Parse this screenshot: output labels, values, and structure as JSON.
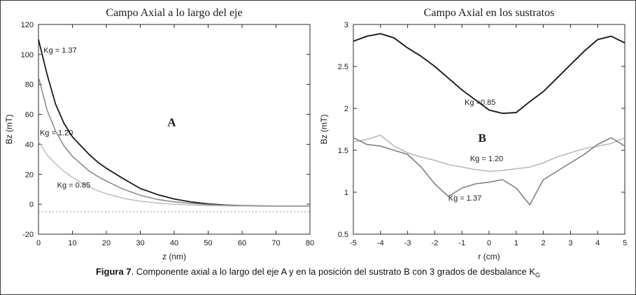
{
  "figure": {
    "caption": {
      "label": "Figura 7",
      "text": ". Componente axial a lo largo del eje A y en la posición del sustrato B con 3 grados de desbalance K",
      "subscript": "G"
    }
  },
  "chart_data": [
    {
      "type": "line",
      "title": "Campo Axial a lo largo del eje",
      "xlabel": "z (nm)",
      "ylabel": "Bz (mT)",
      "xlim": [
        0,
        80
      ],
      "ylim": [
        -20,
        120
      ],
      "xticks": [
        0,
        10,
        20,
        30,
        40,
        50,
        60,
        70,
        80
      ],
      "yticks": [
        -20,
        0,
        20,
        40,
        60,
        80,
        100,
        120
      ],
      "grid": false,
      "legend": "inline-labels",
      "panel_label": "A",
      "series": [
        {
          "name": "Kg = 1.37",
          "color": "#1a1a1a",
          "width": 1.8,
          "x": [
            0,
            2.5,
            5,
            7.5,
            10,
            12.5,
            15,
            17.5,
            20,
            25,
            30,
            35,
            40,
            45,
            50,
            55,
            60,
            65,
            70,
            75,
            80
          ],
          "y": [
            110,
            87,
            67,
            54,
            45,
            39,
            33,
            28,
            24,
            17,
            10.5,
            6.5,
            3.5,
            1.5,
            0.2,
            -0.6,
            -1,
            -1.2,
            -1.3,
            -1.3,
            -1.3
          ]
        },
        {
          "name": "Kg = 1.20",
          "color": "#858585",
          "width": 1.5,
          "x": [
            0,
            2.5,
            5,
            7.5,
            10,
            12.5,
            15,
            17.5,
            20,
            25,
            30,
            35,
            40,
            45,
            50,
            55,
            60,
            65,
            70,
            75,
            80
          ],
          "y": [
            85,
            63,
            49,
            39,
            32,
            27,
            22,
            18.5,
            15.5,
            10,
            6,
            3.2,
            1.6,
            0.6,
            -0.2,
            -0.8,
            -1.1,
            -1.3,
            -1.4,
            -1.4,
            -1.4
          ]
        },
        {
          "name": "Kg = 0.85",
          "color": "#bdbdbd",
          "width": 1.5,
          "x": [
            0,
            2.5,
            5,
            7.5,
            10,
            12.5,
            15,
            17.5,
            20,
            25,
            30,
            35,
            40,
            45,
            50,
            55,
            60,
            65,
            70,
            75,
            80
          ],
          "y": [
            42,
            33,
            27,
            22,
            18,
            14.5,
            11.5,
            9,
            7,
            4,
            2,
            0.8,
            0,
            -0.5,
            -0.9,
            -1.1,
            -1.3,
            -1.4,
            -1.4,
            -1.4,
            -1.4
          ]
        },
        {
          "name": "baseline",
          "color": "#9a9a9a",
          "width": 1,
          "dash": true,
          "x": [
            0,
            80
          ],
          "y": [
            -5,
            -5
          ]
        }
      ],
      "annotations": [
        {
          "text": "Kg = 1.37",
          "x": 1.5,
          "y": 101
        },
        {
          "text": "Kg = 1.20",
          "x": 0.4,
          "y": 46
        },
        {
          "text": "Kg = 0.85",
          "x": 5.5,
          "y": 11
        },
        {
          "text": "A",
          "x": 38,
          "y": 52,
          "style": "panel"
        }
      ]
    },
    {
      "type": "line",
      "title": "Campo Axial en los sustratos",
      "xlabel": "r (cm)",
      "ylabel": "Bz (mT)",
      "xlim": [
        -5,
        5
      ],
      "ylim": [
        0.5,
        3
      ],
      "xticks": [
        -5,
        -4,
        -3,
        -2,
        -1,
        0,
        1,
        2,
        3,
        4,
        5
      ],
      "yticks": [
        0.5,
        1,
        1.5,
        2,
        2.5,
        3
      ],
      "grid": false,
      "legend": "inline-labels",
      "panel_label": "B",
      "series": [
        {
          "name": "Kg =0.85",
          "color": "#1a1a1a",
          "width": 1.9,
          "x": [
            -5,
            -4.5,
            -4,
            -3.5,
            -3,
            -2.5,
            -2,
            -1.5,
            -1,
            -0.5,
            0,
            0.5,
            1,
            1.5,
            2,
            2.5,
            3,
            3.5,
            4,
            4.5,
            5
          ],
          "y": [
            2.8,
            2.86,
            2.89,
            2.84,
            2.72,
            2.62,
            2.5,
            2.36,
            2.22,
            2.1,
            1.98,
            1.94,
            1.95,
            2.08,
            2.2,
            2.36,
            2.52,
            2.68,
            2.82,
            2.86,
            2.78
          ]
        },
        {
          "name": "Kg = 1.20",
          "color": "#b8b8b8",
          "width": 1.6,
          "x": [
            -5,
            -4.5,
            -4,
            -3.5,
            -3,
            -2.5,
            -2,
            -1.5,
            -1,
            -0.5,
            0,
            0.5,
            1,
            1.5,
            2,
            2.5,
            3,
            3.5,
            4,
            4.5,
            5
          ],
          "y": [
            1.6,
            1.63,
            1.68,
            1.55,
            1.47,
            1.42,
            1.38,
            1.33,
            1.3,
            1.27,
            1.25,
            1.26,
            1.28,
            1.3,
            1.35,
            1.42,
            1.47,
            1.52,
            1.55,
            1.58,
            1.65
          ]
        },
        {
          "name": "Kg = 1.37",
          "color": "#7f7f7f",
          "width": 1.6,
          "x": [
            -5,
            -4.5,
            -4,
            -3.5,
            -3,
            -2.5,
            -2,
            -1.5,
            -1,
            -0.5,
            0,
            0.5,
            1,
            1.5,
            2,
            2.5,
            3,
            3.5,
            4,
            4.5,
            5
          ],
          "y": [
            1.65,
            1.57,
            1.55,
            1.5,
            1.45,
            1.3,
            1.1,
            0.95,
            1.05,
            1.1,
            1.12,
            1.15,
            1.05,
            0.85,
            1.15,
            1.25,
            1.35,
            1.45,
            1.57,
            1.65,
            1.55
          ]
        }
      ],
      "annotations": [
        {
          "text": "Kg =0.85",
          "x": -0.9,
          "y": 2.04
        },
        {
          "text": "Kg = 1.20",
          "x": -0.7,
          "y": 1.37
        },
        {
          "text": "Kg = 1.37",
          "x": -1.5,
          "y": 0.9
        },
        {
          "text": "B",
          "x": -0.4,
          "y": 1.6,
          "style": "panel"
        }
      ]
    }
  ]
}
